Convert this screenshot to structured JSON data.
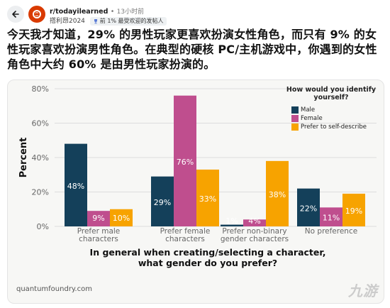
{
  "header": {
    "subreddit": "r/todayilearned",
    "separator": "•",
    "time": "13小时前",
    "author": "搭利昂2024",
    "badge_text": "前 1% 最受欢迎的发帖人",
    "icons": [
      "back-arrow-icon",
      "subreddit-avatar-icon",
      "trophy-icon"
    ]
  },
  "post": {
    "title": "今天我才知道，29% 的男性玩家更喜欢扮演女性角色，而只有 9% 的女性玩家喜欢扮演男性角色。在典型的硬核 PC/主机游戏中，你遇到的女性角色中大约 60% 是由男性玩家扮演的。"
  },
  "chart_card": {
    "source": "quantumfoundry.com",
    "watermark": "九游"
  },
  "colors": {
    "male": "#14405a",
    "female": "#bf4e8e",
    "self": "#f7a300",
    "bg": "#f7f7f5",
    "grid": "#dddddd"
  },
  "chart_data": {
    "type": "bar",
    "title": "In general when creating/selecting a character, what gender do you prefer?",
    "title_lines": [
      "In general when creating/selecting a character,",
      "what gender do you prefer?"
    ],
    "ylabel": "Percent",
    "ylim": [
      0,
      80
    ],
    "yticks": [
      "0%",
      "20%",
      "40%",
      "60%",
      "80%"
    ],
    "legend_title_lines": [
      "How would you identify",
      "yourself?"
    ],
    "legend_position": "top-right",
    "grid": true,
    "categories": [
      [
        "Prefer male",
        "characters"
      ],
      [
        "Prefer female",
        "characters"
      ],
      [
        "Prefer non-binary",
        "gender characters"
      ],
      [
        "No preference",
        ""
      ]
    ],
    "series": [
      {
        "name": "Male",
        "values": [
          48,
          29,
          1,
          22
        ],
        "labels": [
          "48%",
          "29%",
          "1%",
          "22%"
        ]
      },
      {
        "name": "Female",
        "values": [
          9,
          76,
          4,
          11
        ],
        "labels": [
          "9%",
          "76%",
          "4%",
          "11%"
        ]
      },
      {
        "name": "Prefer to self-describe",
        "values": [
          10,
          33,
          38,
          19
        ],
        "labels": [
          "10%",
          "33%",
          "38%",
          "19%"
        ]
      }
    ]
  }
}
